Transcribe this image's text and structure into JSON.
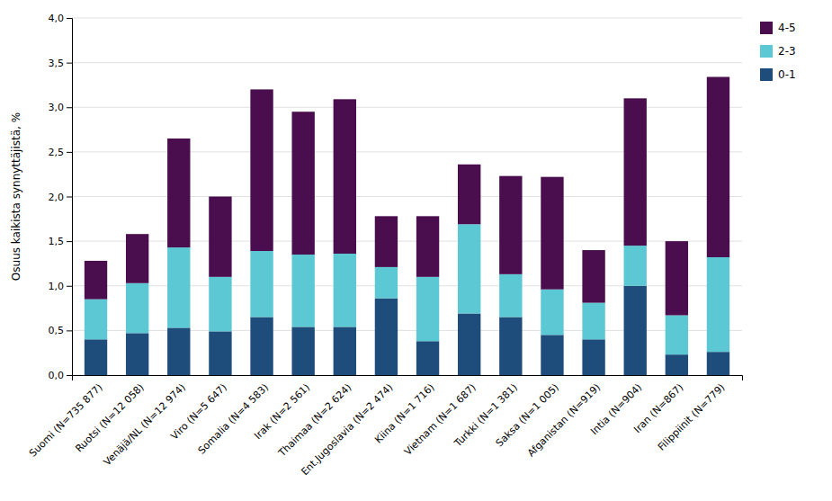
{
  "chart_data": {
    "type": "bar",
    "stacked": true,
    "categories": [
      "Suomi (N=735 877)",
      "Ruotsi (N=12 058)",
      "Venäjä/NL (N=12 974)",
      "Viro (N=5 647)",
      "Somalia (N=4 583)",
      "Irak (N=2 561)",
      "Thaimaa (N=2 624)",
      "Ent.Jugoslavia (N=2 474)",
      "Kiina (N=1 716)",
      "Vietnam (N=1 687)",
      "Turkki (N=1 381)",
      "Saksa (N=1 005)",
      "Afganistan (N=919)",
      "Intia (N=904)",
      "Iran (N=867)",
      "Filippiinit (N=779)"
    ],
    "series": [
      {
        "name": "0-1",
        "color": "#1e4d7b",
        "values": [
          0.4,
          0.47,
          0.53,
          0.49,
          0.65,
          0.54,
          0.54,
          0.86,
          0.38,
          0.69,
          0.65,
          0.45,
          0.4,
          1.0,
          0.23,
          0.26
        ]
      },
      {
        "name": "2-3",
        "color": "#5bc8d3",
        "values": [
          0.45,
          0.56,
          0.9,
          0.61,
          0.74,
          0.81,
          0.82,
          0.35,
          0.72,
          1.0,
          0.48,
          0.51,
          0.41,
          0.45,
          0.44,
          1.06
        ]
      },
      {
        "name": "4-5",
        "color": "#4a0e4e",
        "values": [
          0.43,
          0.55,
          1.22,
          0.9,
          1.81,
          1.6,
          1.73,
          0.57,
          0.68,
          0.67,
          1.1,
          1.26,
          0.59,
          1.65,
          0.83,
          2.02
        ]
      }
    ],
    "ylabel": "Osuus kaikista synnyttäjistä, %",
    "ylim": [
      0.0,
      4.0
    ],
    "yticks": [
      {
        "value": 0.0,
        "label": "0,0"
      },
      {
        "value": 0.5,
        "label": "0,5"
      },
      {
        "value": 1.0,
        "label": "1,0"
      },
      {
        "value": 1.5,
        "label": "1,5"
      },
      {
        "value": 2.0,
        "label": "2,0"
      },
      {
        "value": 2.5,
        "label": "2,5"
      },
      {
        "value": 3.0,
        "label": "3,0"
      },
      {
        "value": 3.5,
        "label": "3,5"
      },
      {
        "value": 4.0,
        "label": "4,0"
      }
    ],
    "grid": true,
    "legend": "right"
  }
}
